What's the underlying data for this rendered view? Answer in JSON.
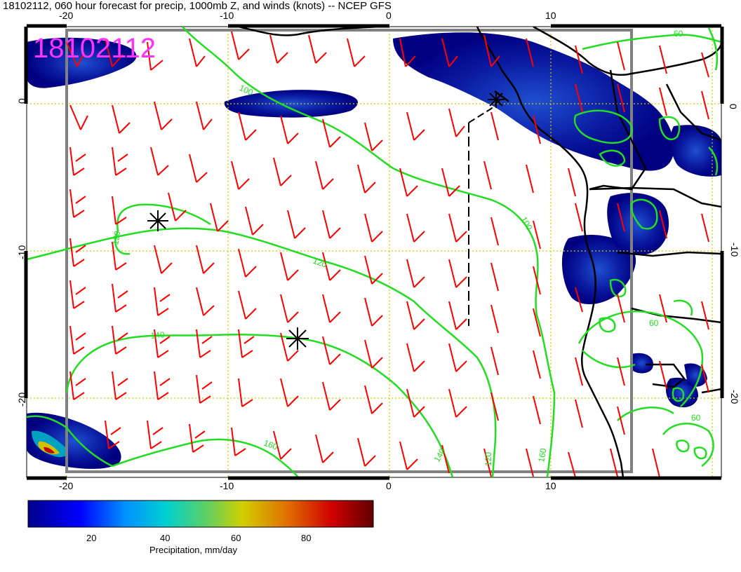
{
  "title": "18102112, 060 hour forecast for precip, 1000mb Z, and winds (knots) -- NCEP GFS",
  "stamp": "18102112",
  "map": {
    "x_ticks": [
      "-20",
      "-10",
      "0",
      "10"
    ],
    "y_ticks": [
      "0",
      "-10",
      "-20"
    ],
    "contour_labels": [
      "100",
      "100",
      "120",
      "120",
      "140",
      "140",
      "160",
      "160",
      "120",
      "60",
      "60",
      "60"
    ]
  },
  "colors": {
    "contour": "#22dd22",
    "wind": "#ff0000",
    "precip_low": "#000080",
    "precip_mid": "#00c0c0",
    "precip_high": "#c00000",
    "grid": "#cccc00",
    "box": "#808080"
  },
  "colorbar": {
    "ticks": [
      "20",
      "40",
      "60",
      "80"
    ],
    "label": "Precipitation, mm/day"
  },
  "icons": [
    "low-pressure-marker",
    "high-pressure-marker"
  ]
}
